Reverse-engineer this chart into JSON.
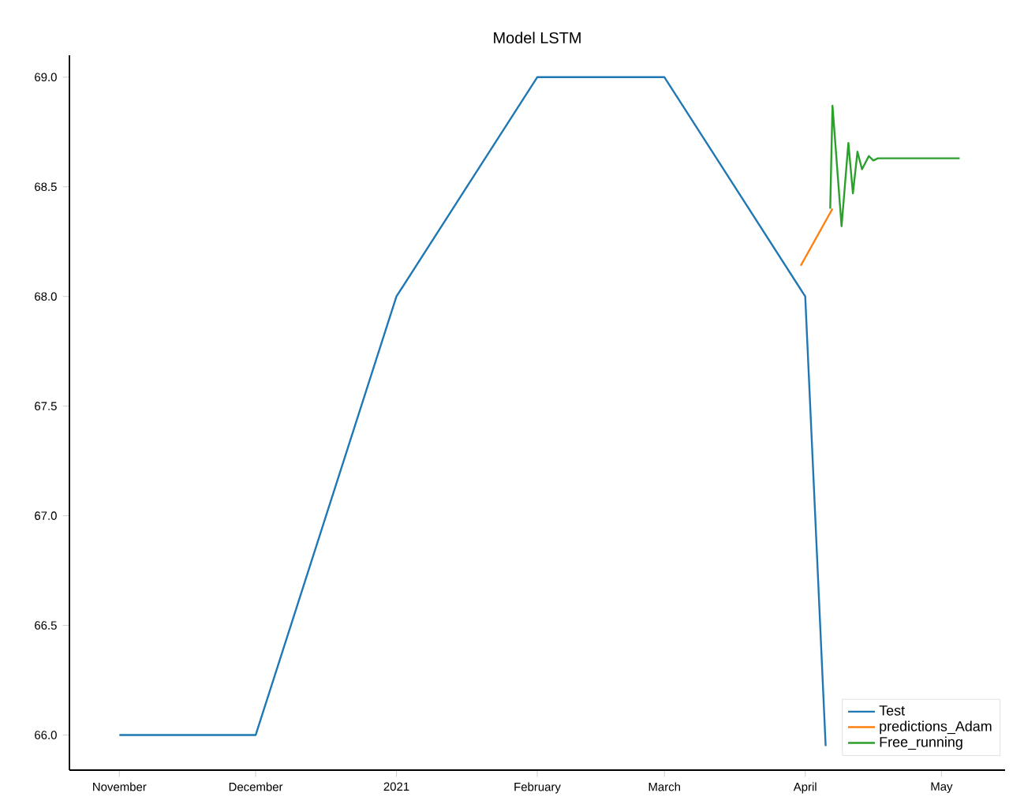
{
  "chart_data": {
    "type": "line",
    "title": "Model LSTM",
    "xlim": [
      "2020-10-21",
      "2021-05-15"
    ],
    "xticks": [
      {
        "value": "2020-11-01",
        "label": "November"
      },
      {
        "value": "2020-12-01",
        "label": "December"
      },
      {
        "value": "2021-01-01",
        "label": "2021"
      },
      {
        "value": "2021-02-01",
        "label": "February"
      },
      {
        "value": "2021-03-01",
        "label": "March"
      },
      {
        "value": "2021-04-01",
        "label": "April"
      },
      {
        "value": "2021-05-01",
        "label": "May"
      }
    ],
    "ylim": [
      65.84,
      69.1
    ],
    "yticks": [
      {
        "value": 66,
        "label": "66.0"
      },
      {
        "value": 66.5,
        "label": "66.5"
      },
      {
        "value": 67,
        "label": "67.0"
      },
      {
        "value": 67.5,
        "label": "67.5"
      },
      {
        "value": 68,
        "label": "68.0"
      },
      {
        "value": 68.5,
        "label": "68.5"
      },
      {
        "value": 69,
        "label": "69.0"
      }
    ],
    "series": [
      {
        "name": "Test",
        "color": "#1f77b4",
        "x": [
          "2020-11-01",
          "2020-12-01",
          "2021-01-01",
          "2021-02-01",
          "2021-03-01",
          "2021-04-01",
          "2021-04-05T12:00"
        ],
        "values": [
          66.0,
          66.0,
          68.0,
          69.0,
          69.0,
          68.0,
          65.95
        ]
      },
      {
        "name": "predictions_Adam",
        "color": "#ff7f0e",
        "x": [
          "2021-03-31",
          "2021-04-07"
        ],
        "values": [
          68.14,
          68.4
        ]
      },
      {
        "name": "Free_running",
        "color": "#2ca02c",
        "x": [
          "2021-04-06T12:00",
          "2021-04-07",
          "2021-04-09",
          "2021-04-10T12:00",
          "2021-04-11T12:00",
          "2021-04-12T12:00",
          "2021-04-13T12:00",
          "2021-04-15",
          "2021-04-16",
          "2021-04-17",
          "2021-05-05"
        ],
        "values": [
          68.4,
          68.87,
          68.32,
          68.7,
          68.47,
          68.66,
          68.58,
          68.64,
          68.62,
          68.63,
          68.63
        ]
      }
    ],
    "legend": "bottom right",
    "grid": false,
    "marker": "none",
    "line_style": "solid"
  }
}
